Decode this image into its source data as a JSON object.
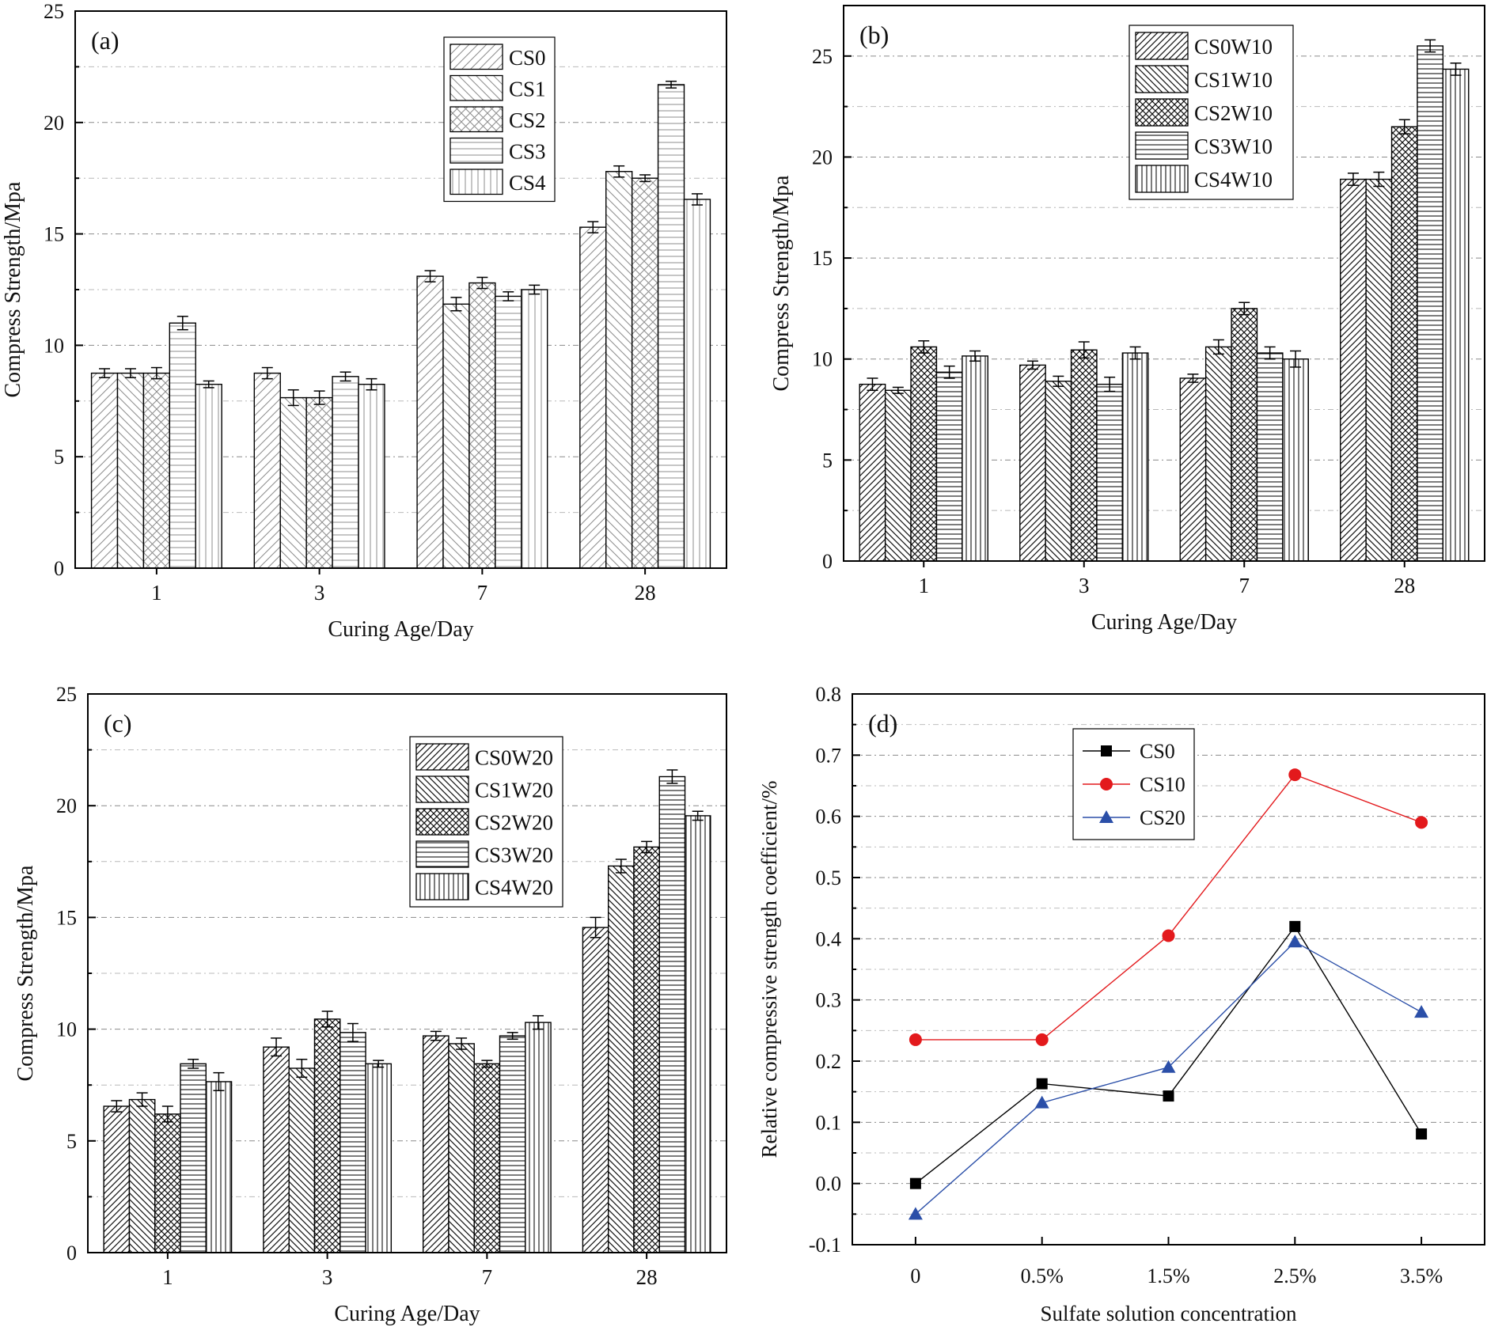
{
  "figure": {
    "colors": {
      "axis": "#000000",
      "grid": "#8a8a8a",
      "cs0": "#000000",
      "cs10": "#e3191c",
      "cs20": "#2b4fa8"
    }
  },
  "chart_data": [
    {
      "id": "a",
      "type": "bar",
      "panel_label": "(a)",
      "xlabel": "Curing Age/Day",
      "ylabel": "Compress Strength/Mpa",
      "categories": [
        "1",
        "3",
        "7",
        "28"
      ],
      "ylim": [
        0,
        25
      ],
      "yticks": [
        0,
        5,
        10,
        15,
        20,
        25
      ],
      "minor_grid": [
        2.5,
        7.5,
        12.5,
        17.5,
        22.5
      ],
      "legend_position": "top-right",
      "series": [
        {
          "name": "CS0",
          "pattern": "light-diag-right",
          "values": [
            8.75,
            8.75,
            13.1,
            15.3
          ],
          "errors": [
            0.2,
            0.25,
            0.25,
            0.25
          ]
        },
        {
          "name": "CS1",
          "pattern": "light-diag-left",
          "values": [
            8.75,
            7.65,
            11.85,
            17.8
          ],
          "errors": [
            0.2,
            0.35,
            0.3,
            0.25
          ]
        },
        {
          "name": "CS2",
          "pattern": "light-cross",
          "values": [
            8.75,
            7.65,
            12.8,
            17.5
          ],
          "errors": [
            0.25,
            0.3,
            0.25,
            0.15
          ]
        },
        {
          "name": "CS3",
          "pattern": "light-horizontal",
          "values": [
            11.0,
            8.6,
            12.2,
            21.7
          ],
          "errors": [
            0.3,
            0.2,
            0.2,
            0.15
          ]
        },
        {
          "name": "CS4",
          "pattern": "light-vertical",
          "values": [
            8.25,
            8.25,
            12.5,
            16.55
          ],
          "errors": [
            0.15,
            0.25,
            0.2,
            0.25
          ]
        }
      ]
    },
    {
      "id": "b",
      "type": "bar",
      "panel_label": "(b)",
      "xlabel": "Curing Age/Day",
      "ylabel": "Compress Strength/Mpa",
      "categories": [
        "1",
        "3",
        "7",
        "28"
      ],
      "ylim": [
        0,
        27.5
      ],
      "yticks": [
        0,
        5,
        10,
        15,
        20,
        25
      ],
      "minor_grid": [
        2.5,
        7.5,
        12.5,
        17.5,
        22.5
      ],
      "legend_position": "top-center",
      "series": [
        {
          "name": "CS0W10",
          "pattern": "dense-diag-right",
          "values": [
            8.75,
            9.7,
            9.05,
            18.9
          ],
          "errors": [
            0.3,
            0.2,
            0.2,
            0.3
          ]
        },
        {
          "name": "CS1W10",
          "pattern": "dense-diag-left",
          "values": [
            8.45,
            8.9,
            10.6,
            18.9
          ],
          "errors": [
            0.15,
            0.25,
            0.35,
            0.35
          ]
        },
        {
          "name": "CS2W10",
          "pattern": "dense-cross",
          "values": [
            10.6,
            10.45,
            12.5,
            21.5
          ],
          "errors": [
            0.3,
            0.4,
            0.3,
            0.35
          ]
        },
        {
          "name": "CS3W10",
          "pattern": "dense-horizontal",
          "values": [
            9.35,
            8.75,
            10.3,
            25.5
          ],
          "errors": [
            0.3,
            0.35,
            0.3,
            0.3
          ]
        },
        {
          "name": "CS4W10",
          "pattern": "dense-vertical",
          "values": [
            10.15,
            10.3,
            10.0,
            24.35
          ],
          "errors": [
            0.25,
            0.3,
            0.4,
            0.3
          ]
        }
      ]
    },
    {
      "id": "c",
      "type": "bar",
      "panel_label": "(c)",
      "xlabel": "Curing Age/Day",
      "ylabel": "Compress Strength/Mpa",
      "categories": [
        "1",
        "3",
        "7",
        "28"
      ],
      "ylim": [
        0,
        25
      ],
      "yticks": [
        0,
        5,
        10,
        15,
        20,
        25
      ],
      "minor_grid": [
        2.5,
        7.5,
        12.5,
        17.5,
        22.5
      ],
      "legend_position": "right",
      "series": [
        {
          "name": "CS0W20",
          "pattern": "dense-diag-right",
          "values": [
            6.55,
            9.2,
            9.7,
            14.55
          ],
          "errors": [
            0.25,
            0.4,
            0.2,
            0.45
          ]
        },
        {
          "name": "CS1W20",
          "pattern": "dense-diag-left",
          "values": [
            6.85,
            8.25,
            9.35,
            17.3
          ],
          "errors": [
            0.3,
            0.4,
            0.25,
            0.3
          ]
        },
        {
          "name": "CS2W20",
          "pattern": "dense-cross",
          "values": [
            6.2,
            10.45,
            8.45,
            18.15
          ],
          "errors": [
            0.35,
            0.35,
            0.15,
            0.25
          ]
        },
        {
          "name": "CS3W20",
          "pattern": "dense-horizontal",
          "values": [
            8.45,
            9.85,
            9.7,
            21.3
          ],
          "errors": [
            0.2,
            0.4,
            0.15,
            0.3
          ]
        },
        {
          "name": "CS4W20",
          "pattern": "dense-vertical",
          "values": [
            7.65,
            8.45,
            10.3,
            19.55
          ],
          "errors": [
            0.4,
            0.15,
            0.3,
            0.2
          ]
        }
      ]
    },
    {
      "id": "d",
      "type": "line",
      "panel_label": "(d)",
      "xlabel": "Sulfate solution concentration",
      "ylabel": "Relative compressive strength coefficient/%",
      "x": [
        "0",
        "0.5%",
        "1.5%",
        "2.5%",
        "3.5%"
      ],
      "ylim": [
        -0.1,
        0.8
      ],
      "yticks": [
        -0.1,
        0.0,
        0.1,
        0.2,
        0.3,
        0.4,
        0.5,
        0.6,
        0.7,
        0.8
      ],
      "ytick_labels": [
        "-0.1",
        "0.0",
        "0.1",
        "0.2",
        "0.3",
        "0.4",
        "0.5",
        "0.6",
        "0.7",
        "0.8"
      ],
      "minor_grid": [
        -0.05,
        0.05,
        0.15,
        0.25,
        0.35,
        0.45,
        0.55,
        0.65,
        0.75
      ],
      "legend_position": "top-left",
      "series": [
        {
          "name": "CS0",
          "marker": "square",
          "color": "#000000",
          "values": [
            0.0,
            0.163,
            0.143,
            0.42,
            0.081
          ]
        },
        {
          "name": "CS10",
          "marker": "circle",
          "color": "#e3191c",
          "values": [
            0.235,
            0.235,
            0.405,
            0.668,
            0.59
          ]
        },
        {
          "name": "CS20",
          "marker": "triangle",
          "color": "#2b4fa8",
          "values": [
            -0.05,
            0.132,
            0.19,
            0.395,
            0.28
          ]
        }
      ]
    }
  ]
}
